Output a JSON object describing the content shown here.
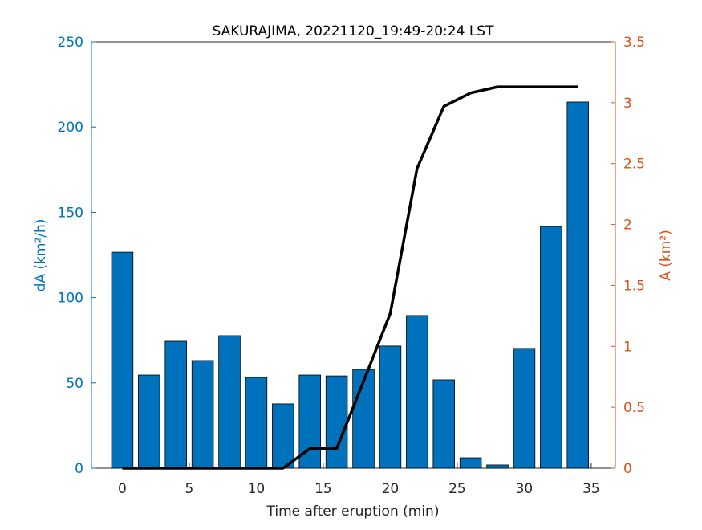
{
  "chart_data": {
    "type": "bar",
    "title": "SAKURAJIMA, 20221120_19:49-20:24 LST",
    "xlabel": "Time after eruption (min)",
    "ylabel": "dA (km²/h)",
    "y2label": "A (km²)",
    "x": [
      0,
      2,
      4,
      6,
      8,
      10,
      12,
      14,
      16,
      18,
      20,
      22,
      24,
      26,
      28,
      30,
      32,
      34
    ],
    "series": [
      {
        "type": "bar",
        "color": "#0072bd",
        "values": [
          126.6,
          54.6,
          74.4,
          63.1,
          77.7,
          53.2,
          37.7,
          54.6,
          54.1,
          57.9,
          71.6,
          89.5,
          51.8,
          6.1,
          1.9,
          70.2,
          141.7,
          214.7
        ]
      },
      {
        "type": "line",
        "axis": "y2",
        "color": "#000000",
        "values": [
          0,
          0,
          0,
          0,
          0,
          0,
          0,
          0.16,
          0.16,
          0.71,
          1.27,
          2.46,
          2.97,
          3.08,
          3.13,
          3.13,
          3.13,
          3.13
        ]
      }
    ],
    "xlim": [
      -2.3,
      36.8
    ],
    "xticks": [
      0,
      5,
      10,
      15,
      20,
      25,
      30,
      35
    ],
    "ylim": [
      0,
      250
    ],
    "yticks": [
      0,
      50,
      100,
      150,
      200,
      250
    ],
    "y2lim": [
      0,
      3.5
    ],
    "y2ticks": [
      0,
      0.5,
      1,
      1.5,
      2,
      2.5,
      3,
      3.5
    ],
    "y_color": "#0072bd",
    "y2_color": "#d95319"
  }
}
